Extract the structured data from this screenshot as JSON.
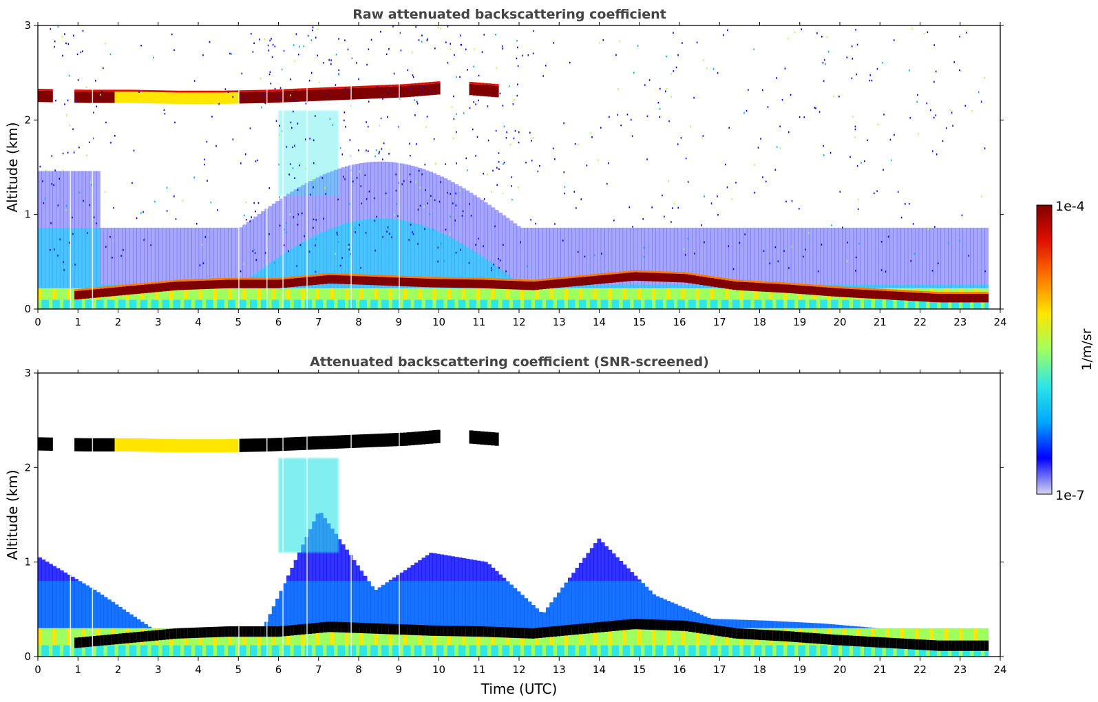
{
  "chart_data": [
    {
      "type": "heatmap",
      "title": "Raw attenuated backscattering coefficient",
      "xlabel": "",
      "ylabel": "Altitude (km)",
      "xlim": [
        0,
        24
      ],
      "ylim": [
        0,
        3
      ],
      "x_ticks": [
        "0",
        "1",
        "2",
        "3",
        "4",
        "5",
        "6",
        "7",
        "8",
        "9",
        "10",
        "11",
        "12",
        "13",
        "14",
        "15",
        "16",
        "17",
        "18",
        "19",
        "20",
        "21",
        "22",
        "23",
        "24"
      ],
      "y_ticks": [
        "0",
        "1",
        "2",
        "3"
      ],
      "data_end_hour": 23.7,
      "layers": [
        {
          "name": "boundary layer top",
          "start_hour": 0.9,
          "end_hour": 23.7,
          "altitude_km": [
            0.15,
            0.2,
            0.25,
            0.27,
            0.27,
            0.32,
            0.3,
            0.28,
            0.27,
            0.25,
            0.3,
            0.35,
            0.33,
            0.25,
            0.22,
            0.18,
            0.15,
            0.12,
            0.12
          ]
        },
        {
          "name": "cloud layer",
          "start_hour": 0.0,
          "end_hour": 11.4,
          "altitude_km": [
            2.25,
            2.24,
            2.24,
            2.23,
            2.23,
            2.24,
            2.26,
            2.28,
            2.3,
            2.34,
            2.3
          ]
        },
        {
          "name": "aerosol plume",
          "start_hour": 6.0,
          "end_hour": 7.5,
          "altitude_km": [
            1.2,
            2.1
          ]
        }
      ]
    },
    {
      "type": "heatmap",
      "title": "Attenuated backscattering coefficient (SNR-screened)",
      "xlabel": "Time (UTC)",
      "ylabel": "Altitude (km)",
      "xlim": [
        0,
        24
      ],
      "ylim": [
        0,
        3
      ],
      "x_ticks": [
        "0",
        "1",
        "2",
        "3",
        "4",
        "5",
        "6",
        "7",
        "8",
        "9",
        "10",
        "11",
        "12",
        "13",
        "14",
        "15",
        "16",
        "17",
        "18",
        "19",
        "20",
        "21",
        "22",
        "23",
        "24"
      ],
      "y_ticks": [
        "0",
        "1",
        "2",
        "3"
      ],
      "data_end_hour": 23.7,
      "signal_top_km": [
        1.05,
        0.7,
        0.3,
        0.3,
        0.3,
        1.55,
        0.7,
        1.1,
        1.0,
        0.45,
        1.25,
        0.65,
        0.4,
        0.38,
        0.35,
        0.3,
        0.25,
        0.22
      ]
    }
  ],
  "colorbar": {
    "label": "1/m/sr",
    "min_label": "1e-7",
    "max_label": "1e-4",
    "colors": [
      "#d6d6f0",
      "#0000ff",
      "#00a8ff",
      "#2ee6e6",
      "#9fff5f",
      "#ffe600",
      "#ff7800",
      "#e01000",
      "#800000"
    ]
  }
}
